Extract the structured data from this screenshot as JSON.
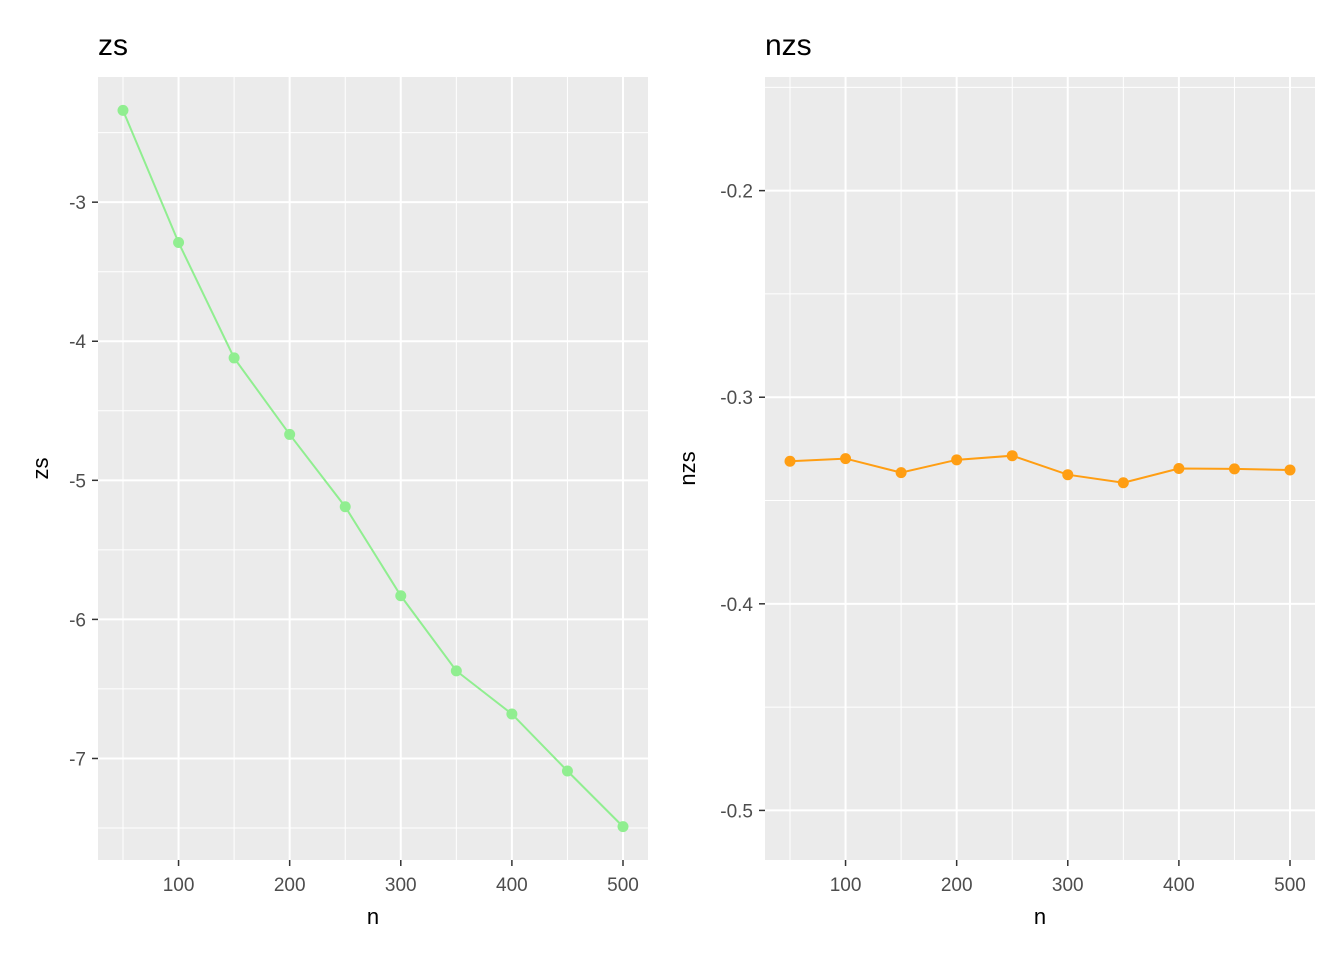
{
  "chart_data": [
    {
      "type": "line",
      "title": "zs",
      "xlabel": "n",
      "ylabel": "zs",
      "xlim": [
        27.5,
        522.5
      ],
      "ylim": [
        -7.73,
        -2.1
      ],
      "xticks": [
        100,
        200,
        300,
        400,
        500
      ],
      "xtick_labels": [
        "100",
        "200",
        "300",
        "400",
        "500"
      ],
      "yticks": [
        -7,
        -6,
        -5,
        -4,
        -3
      ],
      "ytick_labels": [
        "-7",
        "-6",
        "-5",
        "-4",
        "-3"
      ],
      "grid": true,
      "color": "#90EE90",
      "x": [
        50,
        100,
        150,
        200,
        250,
        300,
        350,
        400,
        450,
        500
      ],
      "y": [
        -2.34,
        -3.29,
        -4.12,
        -4.67,
        -5.19,
        -5.83,
        -6.37,
        -6.68,
        -7.09,
        -7.49
      ]
    },
    {
      "type": "line",
      "title": "nzs",
      "xlabel": "n",
      "ylabel": "nzs",
      "xlim": [
        27.5,
        522.5
      ],
      "ylim": [
        -0.524,
        -0.145
      ],
      "xticks": [
        100,
        200,
        300,
        400,
        500
      ],
      "xtick_labels": [
        "100",
        "200",
        "300",
        "400",
        "500"
      ],
      "yticks": [
        -0.5,
        -0.4,
        -0.3,
        -0.2
      ],
      "ytick_labels": [
        "-0.5",
        "-0.4",
        "-0.3",
        "-0.2"
      ],
      "grid": true,
      "color": "#FF9E13",
      "x": [
        50,
        100,
        150,
        200,
        250,
        300,
        350,
        400,
        450,
        500
      ],
      "y": [
        -0.331,
        -0.3297,
        -0.3365,
        -0.3303,
        -0.3283,
        -0.3375,
        -0.3414,
        -0.3345,
        -0.3347,
        -0.3352
      ]
    }
  ]
}
